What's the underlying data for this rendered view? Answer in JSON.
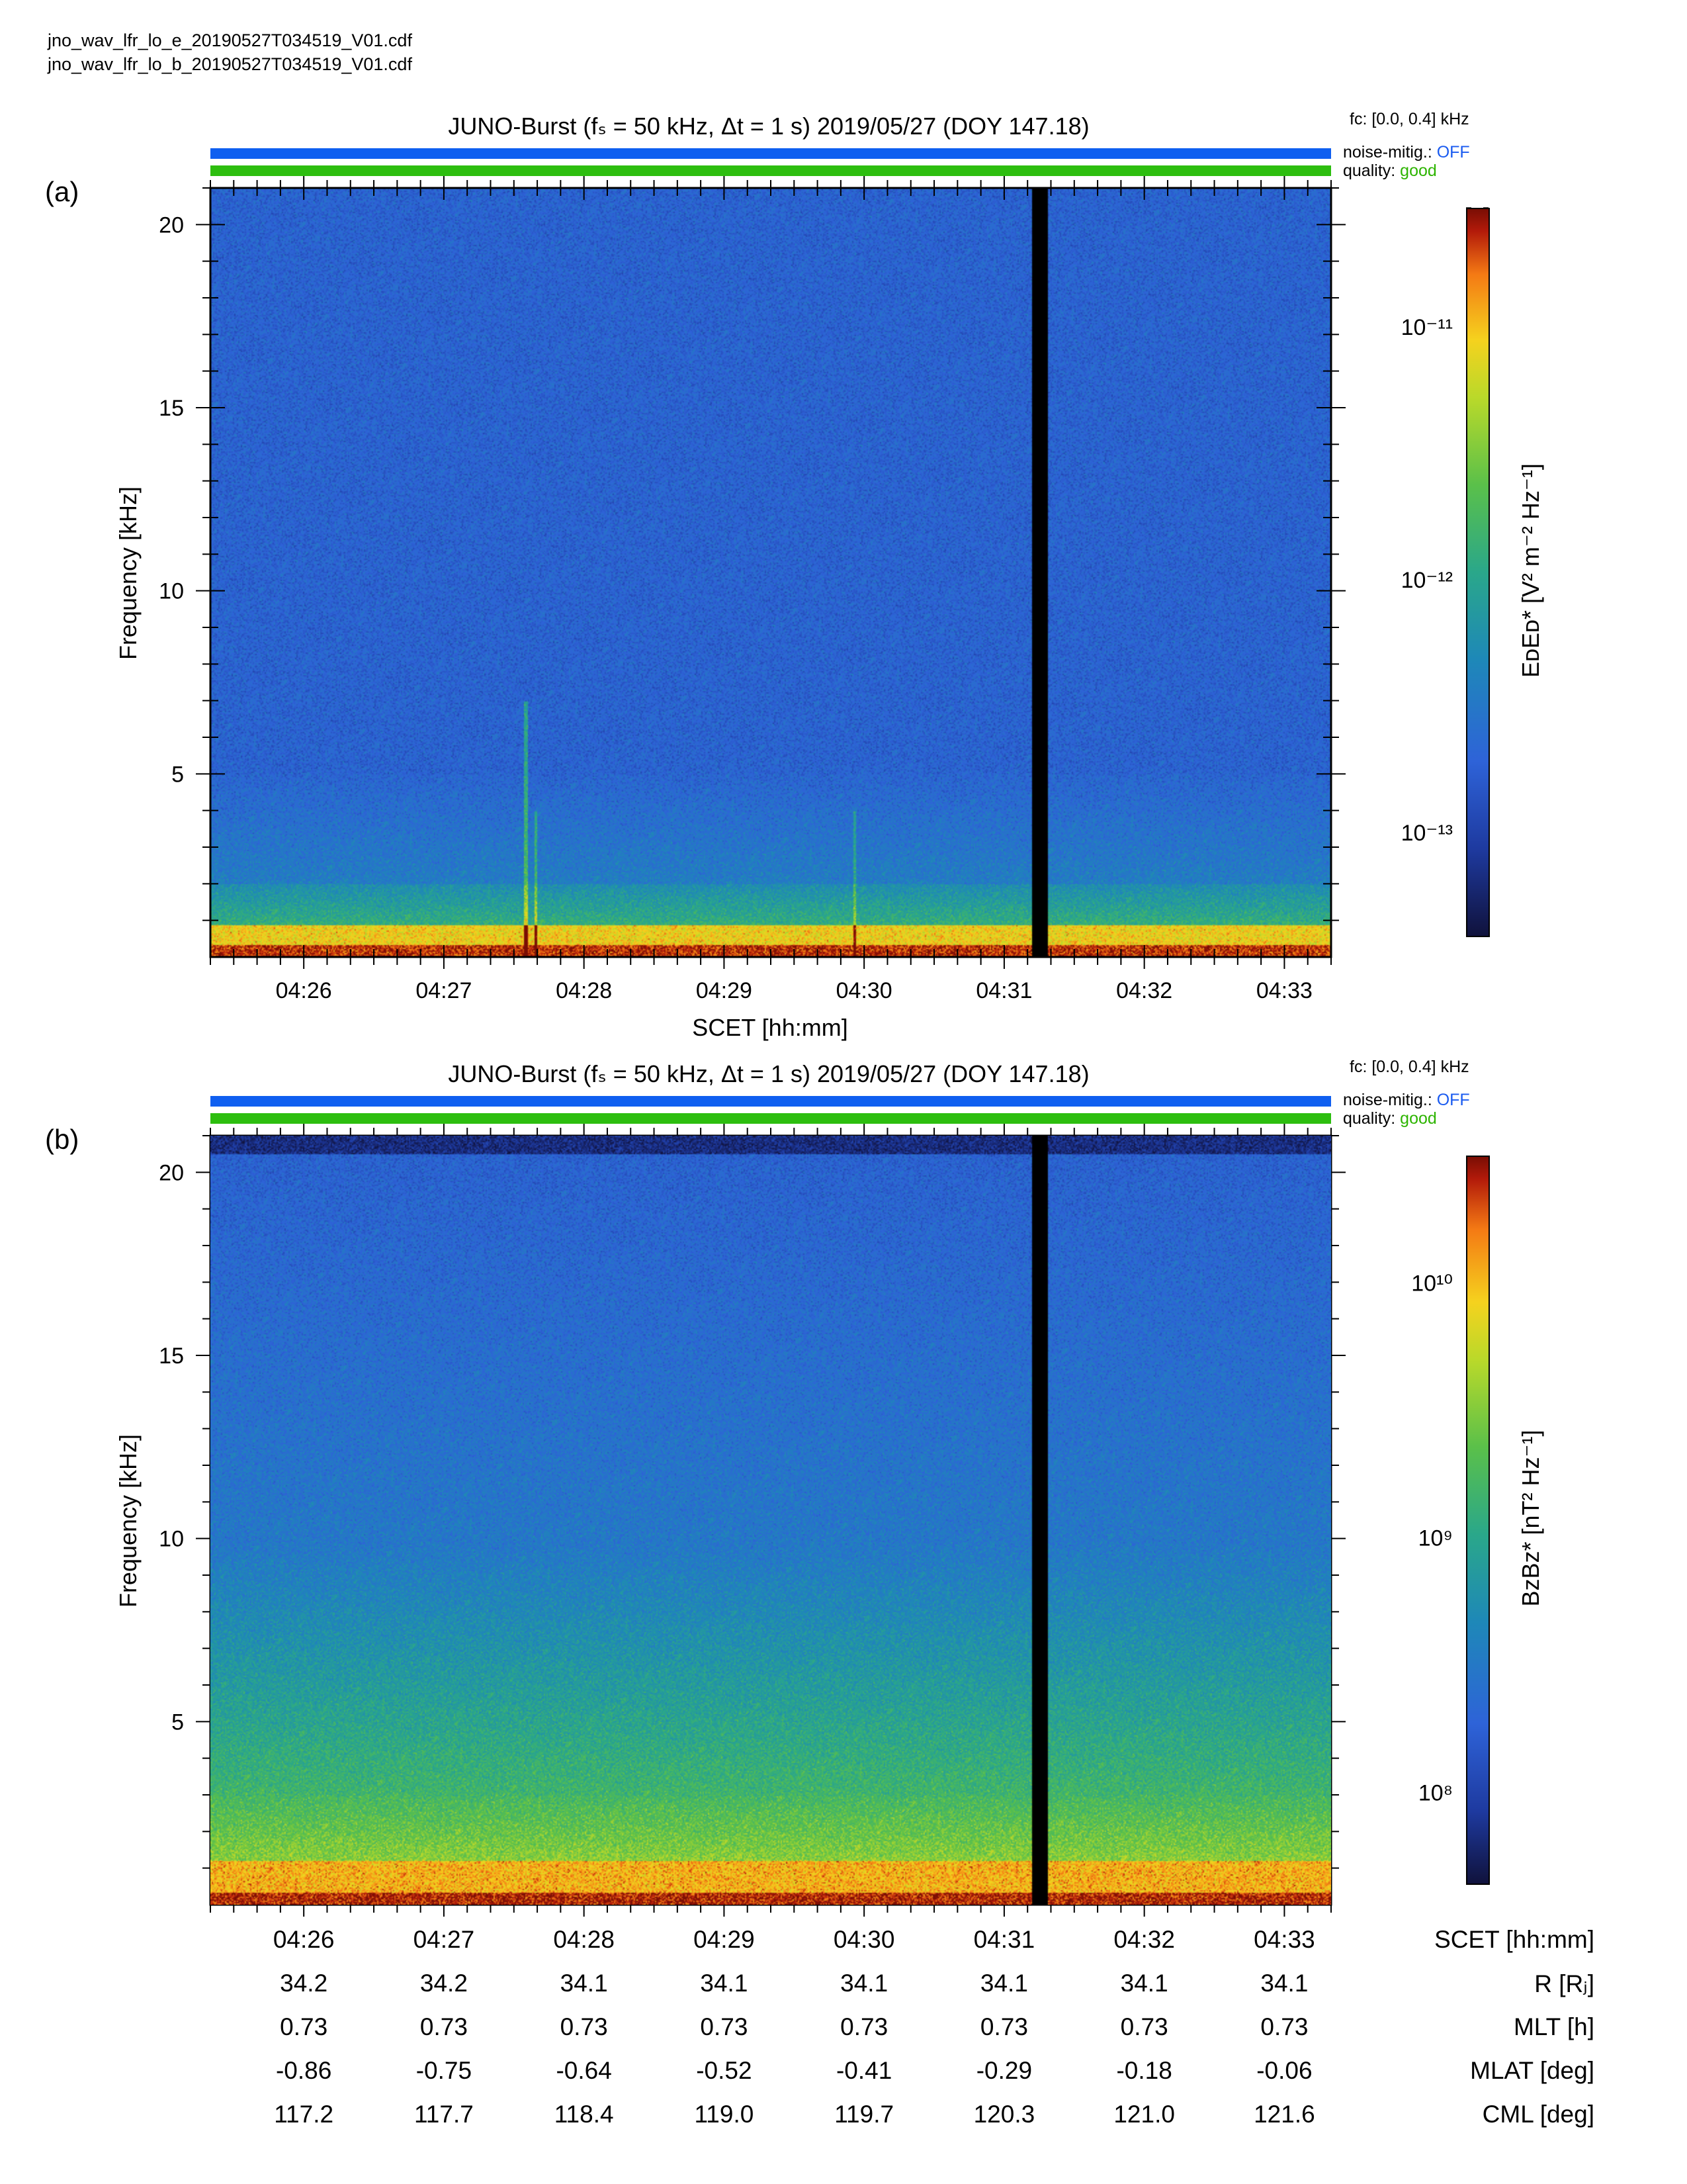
{
  "files": [
    "jno_wav_lfr_lo_e_20190527T034519_V01.cdf",
    "jno_wav_lfr_lo_b_20190527T034519_V01.cdf"
  ],
  "panels": [
    {
      "label": "(a)",
      "title": "JUNO-Burst (fₛ = 50 kHz, Δt = 1 s)  2019/05/27 (DOY 147.18)",
      "fc": "fᴄ: [0.0, 0.4] kHz",
      "noise_label": "noise-mitig.:",
      "noise_value": "OFF",
      "quality_label": "quality:",
      "quality_value": "good",
      "ylabel": "Frequency [kHz]",
      "xlabel": "SCET [hh:mm]",
      "cbar_label": "EᴅEᴅ* [V² m⁻² Hz⁻¹]",
      "cbar_ticks": [
        "10⁻¹¹",
        "10⁻¹²",
        "10⁻¹³"
      ]
    },
    {
      "label": "(b)",
      "title": "JUNO-Burst (fₛ = 50 kHz, Δt = 1 s)  2019/05/27 (DOY 147.18)",
      "fc": "fᴄ: [0.0, 0.4] kHz",
      "noise_label": "noise-mitig.:",
      "noise_value": "OFF",
      "quality_label": "quality:",
      "quality_value": "good",
      "ylabel": "Frequency [kHz]",
      "cbar_label": "BᴢBᴢ* [nT² Hz⁻¹]",
      "cbar_ticks": [
        "10¹⁰",
        "10⁹",
        "10⁸"
      ]
    }
  ],
  "colors": {
    "noise_bar": "#0f5ff0",
    "quality_bar": "#2dbe0f",
    "off_text": "#1a5bf0",
    "good_text": "#2db400"
  },
  "chart_data": [
    {
      "type": "heatmap",
      "panel": "a",
      "title": "JUNO-Burst (fs = 50 kHz, Δt = 1 s)  2019/05/27 (DOY 147.18)",
      "xlabel": "SCET [hh:mm]",
      "ylabel": "Frequency [kHz]",
      "x_ticks": [
        "04:26",
        "04:27",
        "04:28",
        "04:29",
        "04:30",
        "04:31",
        "04:32",
        "04:33"
      ],
      "y_ticks": [
        5,
        10,
        15,
        20
      ],
      "ylim": [
        0,
        21
      ],
      "colorbar": {
        "label": "EDED* [V² m⁻² Hz⁻¹]",
        "scale": "log",
        "ticks": [
          "1e-11",
          "1e-12",
          "1e-13"
        ],
        "range": [
          4e-14,
          3e-11
        ]
      },
      "data_gap": "04:31:15",
      "features": "Intense power below ~1 kHz, band near 0.8 kHz; weak emission lines near 04:27:35 and 04:29:55"
    },
    {
      "type": "heatmap",
      "panel": "b",
      "title": "JUNO-Burst (fs = 50 kHz, Δt = 1 s)  2019/05/27 (DOY 147.18)",
      "ylabel": "Frequency [kHz]",
      "x_ticks": [
        "04:26",
        "04:27",
        "04:28",
        "04:29",
        "04:30",
        "04:31",
        "04:32",
        "04:33"
      ],
      "y_ticks": [
        5,
        10,
        15,
        20
      ],
      "ylim": [
        0,
        21
      ],
      "colorbar": {
        "label": "BZBZ* [nT² Hz⁻¹]",
        "scale": "log",
        "ticks": [
          "1e10",
          "1e9",
          "1e8"
        ],
        "range": [
          45000000.0,
          32000000000.0
        ]
      },
      "data_gap": "04:31:15",
      "features": "Broadband power increasing toward low frequencies; strongest below ~1 kHz"
    }
  ],
  "ephemeris": {
    "rows": [
      {
        "name": "SCET [hh:mm]",
        "values": [
          "04:26",
          "04:27",
          "04:28",
          "04:29",
          "04:30",
          "04:31",
          "04:32",
          "04:33"
        ]
      },
      {
        "name": "R [Rⱼ]",
        "values": [
          "34.2",
          "34.2",
          "34.1",
          "34.1",
          "34.1",
          "34.1",
          "34.1",
          "34.1"
        ]
      },
      {
        "name": "MLT [h]",
        "values": [
          "0.73",
          "0.73",
          "0.73",
          "0.73",
          "0.73",
          "0.73",
          "0.73",
          "0.73"
        ]
      },
      {
        "name": "MLAT [deg]",
        "values": [
          "-0.86",
          "-0.75",
          "-0.64",
          "-0.52",
          "-0.41",
          "-0.29",
          "-0.18",
          "-0.06"
        ]
      },
      {
        "name": "CML [deg]",
        "values": [
          "117.2",
          "117.7",
          "118.4",
          "119.0",
          "119.7",
          "120.3",
          "121.0",
          "121.6"
        ]
      }
    ]
  }
}
